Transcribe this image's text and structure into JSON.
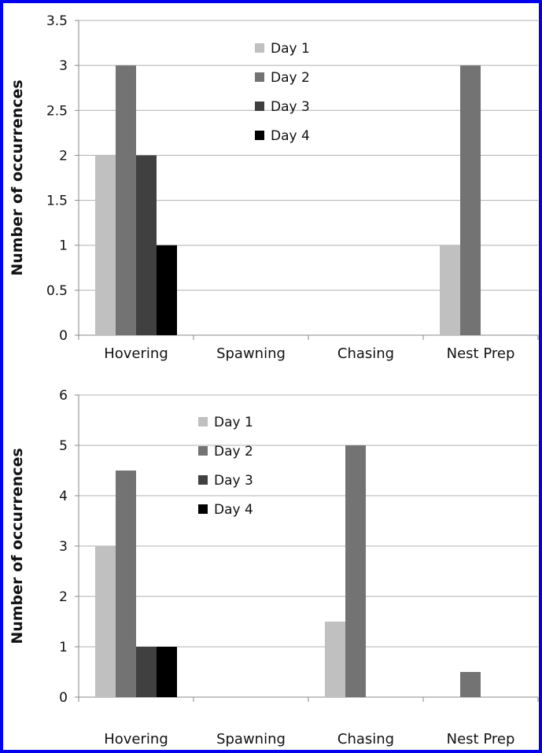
{
  "colors": {
    "border": "#0000ee",
    "grid": "#b0b0b0",
    "axis": "#888888",
    "series": [
      "#c0c0c0",
      "#737373",
      "#404040",
      "#000000"
    ]
  },
  "chart_data": [
    {
      "type": "bar",
      "categories": [
        "Hovering",
        "Spawning",
        "Chasing",
        "Nest Prep"
      ],
      "series": [
        {
          "name": "Day 1",
          "values": [
            2,
            0,
            0,
            1
          ]
        },
        {
          "name": "Day 2",
          "values": [
            3,
            0,
            0,
            3
          ]
        },
        {
          "name": "Day 3",
          "values": [
            2,
            0,
            0,
            0
          ]
        },
        {
          "name": "Day 4",
          "values": [
            1,
            0,
            0,
            0
          ]
        }
      ],
      "ylabel": "Number of occurrences",
      "ylim": [
        0,
        3.5
      ],
      "yticks": [
        0,
        0.5,
        1,
        1.5,
        2,
        2.5,
        3,
        3.5
      ],
      "grid": true,
      "legend": "top-center"
    },
    {
      "type": "bar",
      "categories": [
        "Hovering",
        "Spawning",
        "Chasing",
        "Nest Prep"
      ],
      "series": [
        {
          "name": "Day 1",
          "values": [
            3,
            0,
            1.5,
            0
          ]
        },
        {
          "name": "Day 2",
          "values": [
            4.5,
            0,
            5,
            0.5
          ]
        },
        {
          "name": "Day 3",
          "values": [
            1,
            0,
            0,
            0
          ]
        },
        {
          "name": "Day 4",
          "values": [
            1,
            0,
            0,
            0
          ]
        }
      ],
      "ylabel": "Number of occurrences",
      "ylim": [
        0,
        6
      ],
      "yticks": [
        0,
        1,
        2,
        3,
        4,
        5,
        6
      ],
      "grid": true,
      "legend": "top-left"
    }
  ]
}
